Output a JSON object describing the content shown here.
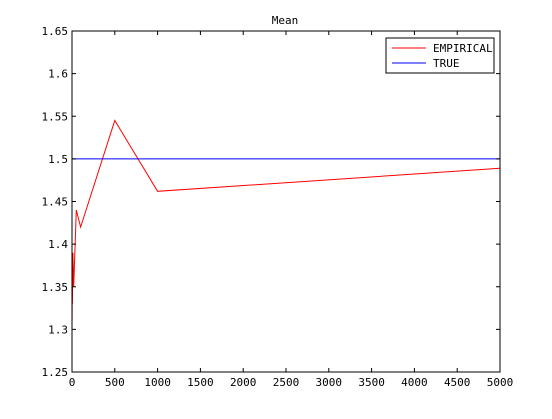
{
  "chart_data": {
    "type": "line",
    "title": "Mean",
    "xlabel": "",
    "ylabel": "",
    "xlim": [
      0,
      5000
    ],
    "ylim": [
      1.25,
      1.65
    ],
    "xticks": [
      0,
      500,
      1000,
      1500,
      2000,
      2500,
      3000,
      3500,
      4000,
      4500,
      5000
    ],
    "yticks": [
      1.25,
      1.3,
      1.35,
      1.4,
      1.45,
      1.5,
      1.55,
      1.6,
      1.65
    ],
    "xtick_labels": [
      "0",
      "500",
      "1000",
      "1500",
      "2000",
      "2500",
      "3000",
      "3500",
      "4000",
      "4500",
      "5000"
    ],
    "ytick_labels": [
      "1.25",
      "1.3",
      "1.35",
      "1.4",
      "1.45",
      "1.5",
      "1.55",
      "1.6",
      "1.65"
    ],
    "grid": false,
    "legend_position": "top-right",
    "series": [
      {
        "name": "EMPIRICAL",
        "color": "#ff0000",
        "x": [
          1,
          2,
          5,
          10,
          20,
          50,
          100,
          500,
          1000,
          5000
        ],
        "y": [
          1.31,
          1.36,
          1.33,
          1.39,
          1.35,
          1.44,
          1.42,
          1.545,
          1.462,
          1.489
        ]
      },
      {
        "name": "TRUE",
        "color": "#0000ff",
        "x": [
          0,
          5000
        ],
        "y": [
          1.5,
          1.5
        ]
      }
    ]
  }
}
